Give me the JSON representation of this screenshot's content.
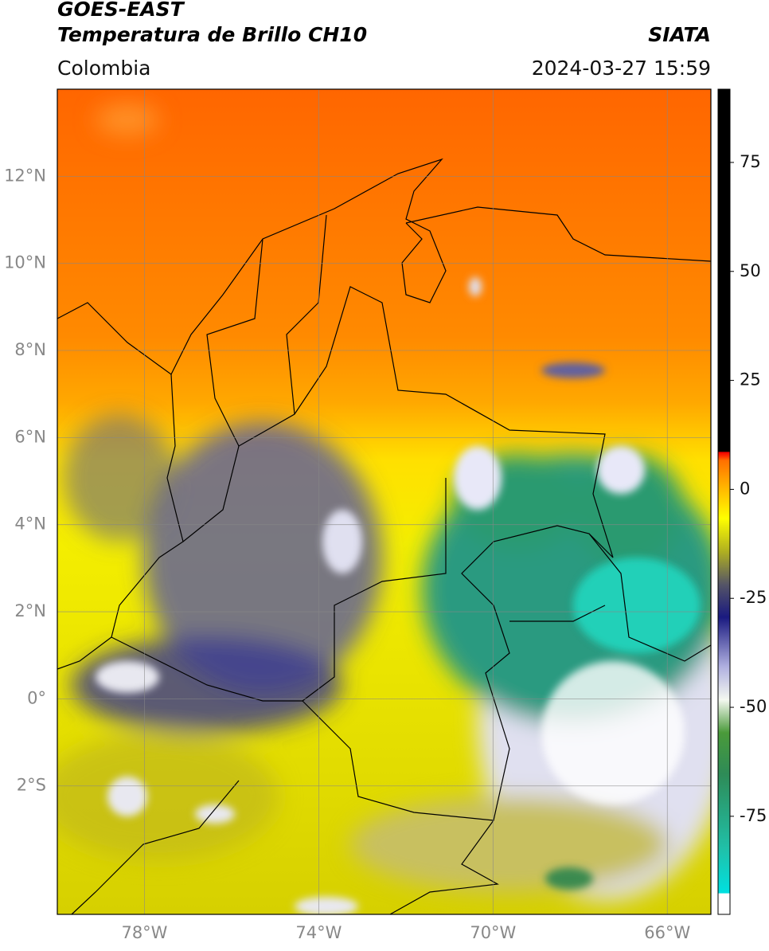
{
  "header": {
    "title": "GOES-EAST",
    "subtitle": "Temperatura de Brillo CH10",
    "source": "SIATA",
    "region": "Colombia",
    "datetime": "2024-03-27 15:59"
  },
  "map": {
    "lonlim": [
      -80,
      -65
    ],
    "latlim": [
      -4.95,
      14
    ],
    "lon_ticks": [
      {
        "value": -78,
        "label": "78°W"
      },
      {
        "value": -74,
        "label": "74°W"
      },
      {
        "value": -70,
        "label": "70°W"
      },
      {
        "value": -66,
        "label": "66°W"
      }
    ],
    "lat_ticks": [
      {
        "value": 12,
        "label": "12°N"
      },
      {
        "value": 10,
        "label": "10°N"
      },
      {
        "value": 8,
        "label": "8°N"
      },
      {
        "value": 6,
        "label": "6°N"
      },
      {
        "value": 4,
        "label": "4°N"
      },
      {
        "value": 2,
        "label": "2°N"
      },
      {
        "value": 0,
        "label": "0°"
      },
      {
        "value": -2,
        "label": "2°S"
      }
    ]
  },
  "colorbar": {
    "lim": [
      -97.5,
      91.8
    ],
    "ticks": [
      75,
      50,
      25,
      0,
      -25,
      -50,
      -75
    ]
  }
}
